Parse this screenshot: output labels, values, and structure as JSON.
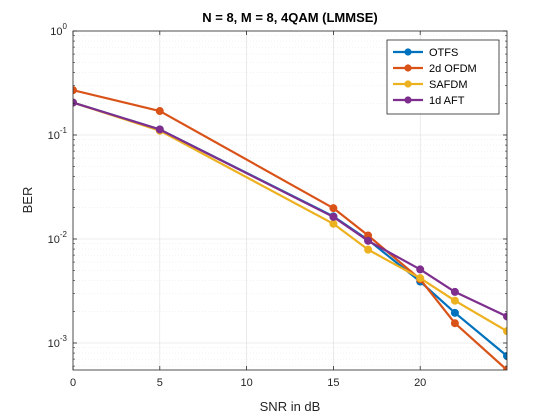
{
  "chart_data": {
    "type": "line",
    "title": "N = 8, M = 8, 4QAM (LMMSE)",
    "xlabel": "SNR in dB",
    "ylabel": "BER",
    "xlim": [
      0,
      25
    ],
    "ylim": [
      0.00055,
      1
    ],
    "yscale": "log",
    "xticks": [
      "0",
      "5",
      "10",
      "15",
      "20"
    ],
    "yticks": [
      {
        "base": "10",
        "exp": "0"
      },
      {
        "base": "10",
        "exp": "-1"
      },
      {
        "base": "10",
        "exp": "-2"
      },
      {
        "base": "10",
        "exp": "-3"
      }
    ],
    "grid": true,
    "legend_position": "top-right",
    "series": [
      {
        "name": "OTFS",
        "color": "#0072BD",
        "x": [
          0,
          5,
          15,
          17,
          20,
          22,
          25
        ],
        "y": [
          0.205,
          0.113,
          0.0165,
          0.0098,
          0.0039,
          0.00195,
          0.00075
        ]
      },
      {
        "name": "2d OFDM",
        "color": "#D95319",
        "x": [
          0,
          5,
          15,
          17,
          20,
          22,
          25
        ],
        "y": [
          0.27,
          0.17,
          0.0198,
          0.0108,
          0.0041,
          0.00155,
          0.00055
        ]
      },
      {
        "name": "SAFDM",
        "color": "#EDB120",
        "x": [
          0,
          5,
          15,
          17,
          20,
          22,
          25
        ],
        "y": [
          0.205,
          0.11,
          0.014,
          0.0079,
          0.0042,
          0.00255,
          0.0013
        ]
      },
      {
        "name": "1d AFT",
        "color": "#7E2F8E",
        "x": [
          0,
          5,
          15,
          17,
          20,
          22,
          25
        ],
        "y": [
          0.205,
          0.113,
          0.0163,
          0.0096,
          0.0051,
          0.0031,
          0.0018
        ]
      }
    ]
  }
}
